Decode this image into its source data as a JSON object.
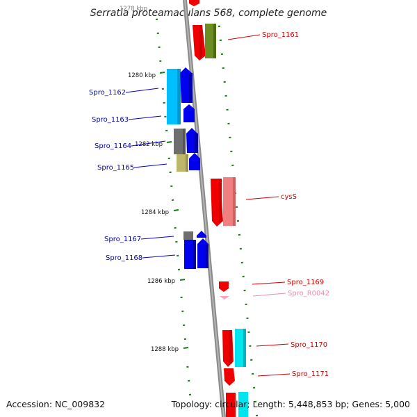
{
  "title": "Serratia proteamaculans 568, complete genome",
  "footer": {
    "accession": "Accession: NC_009832",
    "topology": "Topology: circular; Length: 5,448,853 bp; Genes: 5,000"
  },
  "top_tick_label": "1278 kbp",
  "ticks": [
    "1280 kbp",
    "1282 kbp",
    "1284 kbp",
    "1286 kbp",
    "1288 kbp"
  ],
  "colors": {
    "backbone": "#8a8a8a",
    "tick": "#1a7a1a",
    "label_blue": "#0000cc",
    "label_red": "#cc0000",
    "label_pink": "#f08aa8"
  },
  "gene_labels": {
    "left": [
      "Spro_1162",
      "Spro_1163",
      "Spro_1164",
      "Spro_1165",
      "Spro_1167",
      "Spro_1168"
    ],
    "right": [
      "Spro_1161",
      "cysS",
      "Spro_1169",
      "Spro_R0042",
      "Spro_1170",
      "Spro_1171"
    ]
  }
}
